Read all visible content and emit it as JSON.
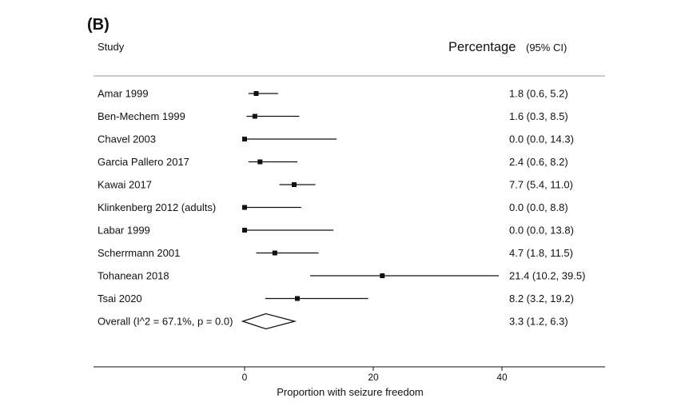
{
  "chart_data": {
    "type": "forest",
    "panel_label": "(B)",
    "column_headers": {
      "study": "Study",
      "estimate": "Percentage",
      "ci": "(95% CI)"
    },
    "studies": [
      {
        "label": "Amar 1999",
        "estimate": 1.8,
        "lower": 0.6,
        "upper": 5.2,
        "ci_text": "1.8 (0.6, 5.2)"
      },
      {
        "label": "Ben-Mechem 1999",
        "estimate": 1.6,
        "lower": 0.3,
        "upper": 8.5,
        "ci_text": "1.6 (0.3, 8.5)"
      },
      {
        "label": "Chavel 2003",
        "estimate": 0.0,
        "lower": 0.0,
        "upper": 14.3,
        "ci_text": "0.0 (0.0, 14.3)"
      },
      {
        "label": "Garcia Pallero 2017",
        "estimate": 2.4,
        "lower": 0.6,
        "upper": 8.2,
        "ci_text": "2.4 (0.6, 8.2)"
      },
      {
        "label": "Kawai 2017",
        "estimate": 7.7,
        "lower": 5.4,
        "upper": 11.0,
        "ci_text": "7.7 (5.4, 11.0)"
      },
      {
        "label": "Klinkenberg 2012 (adults)",
        "estimate": 0.0,
        "lower": 0.0,
        "upper": 8.8,
        "ci_text": "0.0 (0.0, 8.8)"
      },
      {
        "label": "Labar 1999",
        "estimate": 0.0,
        "lower": 0.0,
        "upper": 13.8,
        "ci_text": "0.0 (0.0, 13.8)"
      },
      {
        "label": "Scherrmann 2001",
        "estimate": 4.7,
        "lower": 1.8,
        "upper": 11.5,
        "ci_text": "4.7 (1.8, 11.5)"
      },
      {
        "label": "Tohanean 2018",
        "estimate": 21.4,
        "lower": 10.2,
        "upper": 39.5,
        "ci_text": "21.4 (10.2, 39.5)"
      },
      {
        "label": "Tsai 2020",
        "estimate": 8.2,
        "lower": 3.2,
        "upper": 19.2,
        "ci_text": "8.2 (3.2, 19.2)"
      }
    ],
    "overall": {
      "label": "Overall  (I^2 = 67.1%, p = 0.0)",
      "estimate": 3.3,
      "lower": 1.2,
      "upper": 6.3,
      "ci_text": "3.3 (1.2, 6.3)"
    },
    "x_axis": {
      "label": "Proportion with seizure freedom",
      "ticks": [
        0,
        20,
        40
      ],
      "tick_labels": [
        "0",
        "20",
        "40"
      ]
    },
    "colors": {
      "ink": "#111111",
      "rule": "#9a9a9a",
      "background": "#ffffff"
    }
  }
}
